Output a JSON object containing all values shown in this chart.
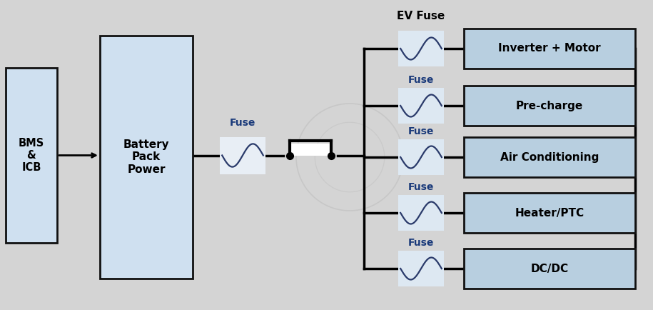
{
  "bg_color": "#d4d4d4",
  "box_fill_blue": "#cfe0f0",
  "box_fill_dark": "#b8cfe0",
  "fuse_fill": "#e8eef5",
  "fuse_label_color": "#1a3a7a",
  "text_color": "#000000",
  "output_boxes": [
    {
      "label": "Inverter + Motor"
    },
    {
      "label": "Pre-charge"
    },
    {
      "label": "Air Conditioning"
    },
    {
      "label": "Heater/PTC"
    },
    {
      "label": "DC/DC"
    }
  ],
  "ev_fuse_label": "EV Fuse",
  "fuse_label": "Fuse",
  "main_fuse_label": "Fuse",
  "figsize": [
    9.15,
    4.34
  ],
  "dpi": 100
}
